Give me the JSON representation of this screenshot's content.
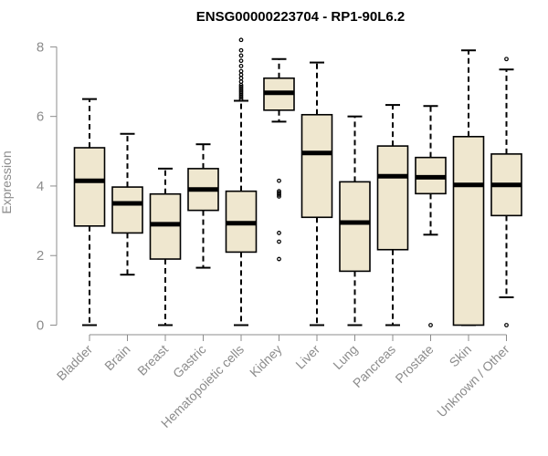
{
  "chart_data": {
    "type": "boxplot",
    "title": "ENSG00000223704 - RP1-90L6.2",
    "xlabel": "",
    "ylabel": "Expression",
    "ylim": [
      0,
      8.2
    ],
    "yticks": [
      0,
      2,
      4,
      6,
      8
    ],
    "colors": {
      "box_fill": "#efe7cf",
      "stroke": "#000000",
      "axis": "#8c8c8c"
    },
    "categories": [
      "Bladder",
      "Brain",
      "Breast",
      "Gastric",
      "Hematopoietic cells",
      "Kidney",
      "Liver",
      "Lung",
      "Pancreas",
      "Prostate",
      "Skin",
      "Unknown / Other"
    ],
    "boxes": [
      {
        "whisker_low": 0.0,
        "q1": 2.85,
        "median": 4.15,
        "q3": 5.1,
        "whisker_high": 6.5,
        "outliers": []
      },
      {
        "whisker_low": 1.45,
        "q1": 2.65,
        "median": 3.5,
        "q3": 3.97,
        "whisker_high": 5.5,
        "outliers": []
      },
      {
        "whisker_low": 0.0,
        "q1": 1.9,
        "median": 2.9,
        "q3": 3.77,
        "whisker_high": 4.5,
        "outliers": []
      },
      {
        "whisker_low": 1.65,
        "q1": 3.3,
        "median": 3.9,
        "q3": 4.5,
        "whisker_high": 5.2,
        "outliers": []
      },
      {
        "whisker_low": 0.0,
        "q1": 2.1,
        "median": 2.93,
        "q3": 3.85,
        "whisker_high": 6.45,
        "outliers": [
          6.5,
          6.55,
          6.6,
          6.65,
          6.7,
          6.75,
          6.8,
          6.85,
          6.9,
          7.0,
          7.1,
          7.2,
          7.3,
          7.45,
          7.6,
          7.75,
          7.9,
          8.2
        ]
      },
      {
        "whisker_low": 5.85,
        "q1": 6.18,
        "median": 6.68,
        "q3": 7.1,
        "whisker_high": 7.65,
        "outliers": [
          4.15,
          3.85,
          3.8,
          3.75,
          3.7,
          2.65,
          2.4,
          1.9
        ]
      },
      {
        "whisker_low": 0.0,
        "q1": 3.1,
        "median": 4.95,
        "q3": 6.05,
        "whisker_high": 7.55,
        "outliers": []
      },
      {
        "whisker_low": 0.0,
        "q1": 1.55,
        "median": 2.95,
        "q3": 4.12,
        "whisker_high": 6.0,
        "outliers": []
      },
      {
        "whisker_low": 0.0,
        "q1": 2.17,
        "median": 4.28,
        "q3": 5.15,
        "whisker_high": 6.33,
        "outliers": []
      },
      {
        "whisker_low": 2.6,
        "q1": 3.78,
        "median": 4.25,
        "q3": 4.82,
        "whisker_high": 6.3,
        "outliers": [
          0.0
        ]
      },
      {
        "whisker_low": 0.0,
        "q1": 0.0,
        "median": 4.03,
        "q3": 5.42,
        "whisker_high": 7.9,
        "outliers": []
      },
      {
        "whisker_low": 0.8,
        "q1": 3.15,
        "median": 4.03,
        "q3": 4.92,
        "whisker_high": 7.35,
        "outliers": [
          7.65,
          0.0
        ]
      }
    ]
  }
}
